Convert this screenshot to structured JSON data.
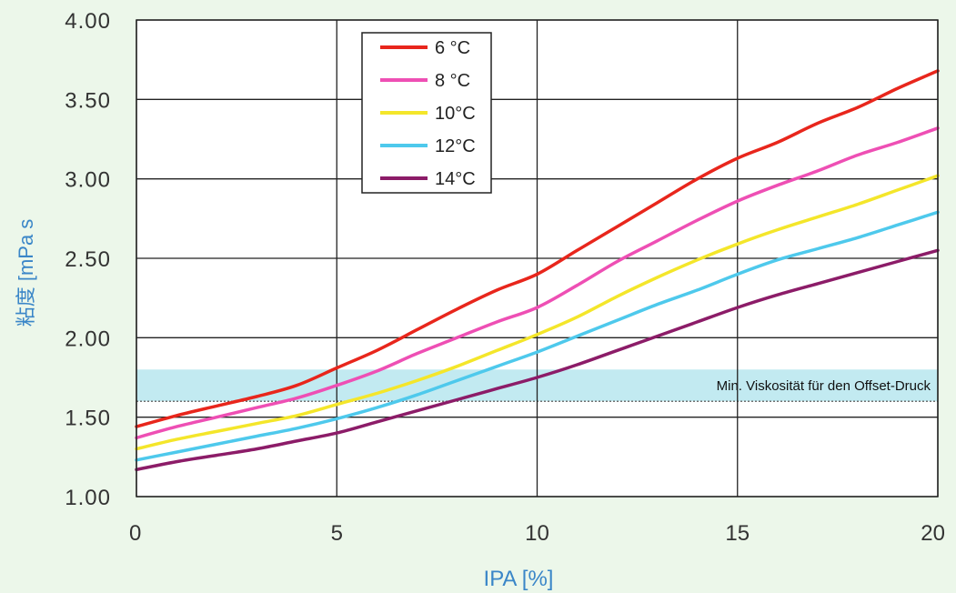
{
  "chart_data": {
    "type": "line",
    "xlabel": "IPA [%]",
    "ylabel": "粘度 [mPa s",
    "xlim": [
      0,
      20
    ],
    "ylim": [
      1.0,
      4.0
    ],
    "x_ticks": [
      "0",
      "5",
      "10",
      "15",
      "20"
    ],
    "y_ticks": [
      "1.00",
      "1.50",
      "2.00",
      "2.50",
      "3.00",
      "3.50",
      "4.00"
    ],
    "grid": true,
    "legend_position": "top-center",
    "band": {
      "label": "Min. Viskosität für den Offset-Druck",
      "from": 1.6,
      "to": 1.8,
      "color": "#aee3ec"
    },
    "x": [
      0,
      1,
      2,
      3,
      4,
      5,
      6,
      7,
      8,
      9,
      10,
      11,
      12,
      13,
      14,
      15,
      16,
      17,
      18,
      19,
      20
    ],
    "series": [
      {
        "name": "6 °C",
        "color": "#e8261c",
        "values": [
          1.44,
          1.51,
          1.57,
          1.63,
          1.7,
          1.81,
          1.92,
          2.05,
          2.18,
          2.3,
          2.4,
          2.55,
          2.7,
          2.85,
          3.0,
          3.13,
          3.23,
          3.35,
          3.45,
          3.57,
          3.68
        ]
      },
      {
        "name": "8 °C",
        "color": "#ee4fb4",
        "values": [
          1.37,
          1.44,
          1.5,
          1.56,
          1.62,
          1.7,
          1.79,
          1.9,
          2.0,
          2.1,
          2.19,
          2.33,
          2.48,
          2.61,
          2.74,
          2.86,
          2.96,
          3.05,
          3.15,
          3.23,
          3.32
        ]
      },
      {
        "name": "10°C",
        "color": "#f4e62a",
        "values": [
          1.3,
          1.36,
          1.41,
          1.46,
          1.51,
          1.58,
          1.65,
          1.73,
          1.82,
          1.92,
          2.02,
          2.13,
          2.26,
          2.38,
          2.49,
          2.59,
          2.68,
          2.76,
          2.84,
          2.93,
          3.02
        ]
      },
      {
        "name": "12°C",
        "color": "#4ec9ec",
        "values": [
          1.23,
          1.28,
          1.33,
          1.38,
          1.43,
          1.49,
          1.56,
          1.64,
          1.73,
          1.82,
          1.91,
          2.01,
          2.11,
          2.21,
          2.3,
          2.4,
          2.49,
          2.56,
          2.63,
          2.71,
          2.79
        ]
      },
      {
        "name": "14°C",
        "color": "#8c1c68",
        "values": [
          1.17,
          1.22,
          1.26,
          1.3,
          1.35,
          1.4,
          1.47,
          1.54,
          1.61,
          1.68,
          1.75,
          1.83,
          1.92,
          2.01,
          2.1,
          2.19,
          2.27,
          2.34,
          2.41,
          2.48,
          2.55
        ]
      }
    ]
  }
}
